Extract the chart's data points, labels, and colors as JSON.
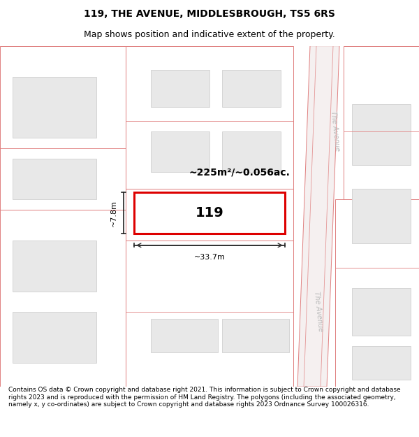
{
  "title_line1": "119, THE AVENUE, MIDDLESBROUGH, TS5 6RS",
  "title_line2": "Map shows position and indicative extent of the property.",
  "footer_text": "Contains OS data © Crown copyright and database right 2021. This information is subject to Crown copyright and database rights 2023 and is reproduced with the permission of HM Land Registry. The polygons (including the associated geometry, namely x, y co-ordinates) are subject to Crown copyright and database rights 2023 Ordnance Survey 100026316.",
  "map_bg": "#ffffff",
  "plot_bg": "#ffffff",
  "road_fill": "#f5f0f0",
  "parcel_edge": "#e08080",
  "building_fill": "#e8e8e8",
  "building_edge": "#d0d0d0",
  "highlight_edge": "#dd0000",
  "highlight_fill": "#ffffff",
  "street_label_color": "#bbbbbb",
  "street_label": "The Avenue",
  "property_label": "119",
  "area_label": "~225m²/~0.056ac.",
  "width_label": "~33.7m",
  "height_label": "~7.8m",
  "title_fontsize": 10,
  "subtitle_fontsize": 9,
  "footer_fontsize": 6.5,
  "property_label_fontsize": 14,
  "area_label_fontsize": 10,
  "dim_label_fontsize": 8
}
